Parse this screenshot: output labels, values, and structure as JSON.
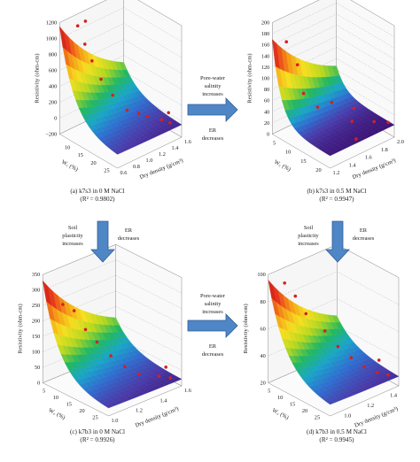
{
  "colors": {
    "arrow_fill": "#4f86c6",
    "arrow_stroke": "#2f5f96",
    "points": "#d42020",
    "grid": "#9a9a9a",
    "colormap": [
      "#3b0f70",
      "#4a3aa8",
      "#2f6fd0",
      "#1aa6c8",
      "#22b860",
      "#b8d820",
      "#f6e020",
      "#f59a16",
      "#e6321c",
      "#b81414"
    ]
  },
  "arrows": {
    "h_top": {
      "lines": [
        "Pore-water",
        "salinity",
        "increases"
      ],
      "below": [
        "ER",
        "decreases"
      ]
    },
    "h_bottom": {
      "lines": [
        "Pore-water",
        "salinity",
        "increases"
      ],
      "below": [
        "ER",
        "decreases"
      ]
    },
    "v_left": {
      "left": [
        "Soil",
        "plasticity",
        "increases"
      ],
      "right": [
        "ER",
        "decreases"
      ]
    },
    "v_right": {
      "left": [
        "Soil",
        "plasticity",
        "increases"
      ],
      "right": [
        "ER",
        "decreases"
      ]
    }
  },
  "chart_data": [
    {
      "type": "surface3d",
      "caption": "(a) k7s3 in 0 M NaCl",
      "r2": "(R² = 0.9802)",
      "zlabel": "Resistivity (ohm-cm)",
      "wlabel": "W꜀ (%)",
      "dlabel": "Dry density (g/cm³)",
      "z_ticks": [
        "1200",
        "1000",
        "800",
        "600",
        "400",
        "200",
        "0",
        "−200"
      ],
      "zlim": [
        -200,
        1200
      ],
      "w_ticks": [
        "10",
        "15",
        "20",
        "25"
      ],
      "wlim": [
        5,
        27
      ],
      "d_ticks": [
        "0.6",
        "0.8",
        "1.0",
        "1.2",
        "1.4",
        "1.6"
      ],
      "dlim": [
        0.6,
        1.6
      ],
      "surface": {
        "z_max": 1150,
        "z_floor": -50,
        "w_decay": 0.18,
        "d_decay": 1.2
      },
      "points": [
        {
          "w": 7,
          "d": 0.8,
          "z": 1120
        },
        {
          "w": 7.5,
          "d": 0.9,
          "z": 1150
        },
        {
          "w": 8.5,
          "d": 0.85,
          "z": 900
        },
        {
          "w": 10,
          "d": 0.9,
          "z": 700
        },
        {
          "w": 11,
          "d": 1.0,
          "z": 450
        },
        {
          "w": 13,
          "d": 1.1,
          "z": 250
        },
        {
          "w": 16,
          "d": 1.2,
          "z": 80
        },
        {
          "w": 18,
          "d": 1.3,
          "z": 40
        },
        {
          "w": 20,
          "d": 1.35,
          "z": 20
        },
        {
          "w": 23,
          "d": 1.45,
          "z": 0
        },
        {
          "w": 25,
          "d": 1.5,
          "z": -20
        },
        {
          "w": 22,
          "d": 1.6,
          "z": 10
        }
      ]
    },
    {
      "type": "surface3d",
      "caption": "(b) k7s3 in 0.5 M NaCl",
      "r2": "(R² = 0.9947)",
      "zlabel": "Resistivity (ohm-cm)",
      "wlabel": "W꜀ (%)",
      "dlabel": "Dry density (g/cm³)",
      "z_ticks": [
        "200",
        "180",
        "160",
        "140",
        "120",
        "100",
        "80",
        "60",
        "40",
        "20",
        "0"
      ],
      "zlim": [
        0,
        200
      ],
      "w_ticks": [
        "5",
        "10",
        "15",
        "20"
      ],
      "wlim": [
        3,
        22
      ],
      "d_ticks": [
        "1.2",
        "1.4",
        "1.6",
        "1.8",
        "2.0"
      ],
      "dlim": [
        1.2,
        2.0
      ],
      "surface": {
        "z_max": 170,
        "z_floor": 22,
        "w_decay": 0.35,
        "d_decay": 1.5
      },
      "points": [
        {
          "w": 5,
          "d": 1.3,
          "z": 165
        },
        {
          "w": 6,
          "d": 1.4,
          "z": 120
        },
        {
          "w": 8,
          "d": 1.4,
          "z": 75
        },
        {
          "w": 10,
          "d": 1.5,
          "z": 50
        },
        {
          "w": 12,
          "d": 1.6,
          "z": 58
        },
        {
          "w": 14,
          "d": 1.8,
          "z": 40
        },
        {
          "w": 16,
          "d": 1.7,
          "z": 30
        },
        {
          "w": 18,
          "d": 1.9,
          "z": 22
        },
        {
          "w": 20,
          "d": 1.6,
          "z": 18
        },
        {
          "w": 20,
          "d": 2.0,
          "z": 20
        }
      ]
    },
    {
      "type": "surface3d",
      "caption": "(c) k7b3 in 0 M NaCl",
      "r2": "(R² = 0.9926)",
      "zlabel": "Resistivity (ohm-cm)",
      "wlabel": "W꜀ (%)",
      "dlabel": "Dry density (g/cm³)",
      "z_ticks": [
        "350",
        "300",
        "250",
        "200",
        "150",
        "100",
        "50",
        "0"
      ],
      "zlim": [
        0,
        350
      ],
      "w_ticks": [
        "5",
        "10",
        "15",
        "20",
        "25"
      ],
      "wlim": [
        3,
        28
      ],
      "d_ticks": [
        "1.0",
        "1.2",
        "1.4",
        "1.6"
      ],
      "dlim": [
        1.0,
        1.6
      ],
      "surface": {
        "z_max": 330,
        "z_floor": 20,
        "w_decay": 0.16,
        "d_decay": 2.0
      },
      "points": [
        {
          "w": 6,
          "d": 1.1,
          "z": 250
        },
        {
          "w": 8,
          "d": 1.15,
          "z": 230
        },
        {
          "w": 10,
          "d": 1.2,
          "z": 170
        },
        {
          "w": 12,
          "d": 1.25,
          "z": 130
        },
        {
          "w": 15,
          "d": 1.3,
          "z": 90
        },
        {
          "w": 18,
          "d": 1.35,
          "z": 60
        },
        {
          "w": 21,
          "d": 1.4,
          "z": 40
        },
        {
          "w": 24,
          "d": 1.5,
          "z": 30
        },
        {
          "w": 26,
          "d": 1.55,
          "z": 25
        },
        {
          "w": 22,
          "d": 1.6,
          "z": 35
        }
      ]
    },
    {
      "type": "surface3d",
      "caption": "(d) k7b3 in 0.5 M NaCl",
      "r2": "(R² = 0.9945)",
      "zlabel": "Resistivity (ohm-cm)",
      "wlabel": "W꜀ (%)",
      "dlabel": "Dry density (g/cm³)",
      "z_ticks": [
        "100",
        "80",
        "60",
        "40",
        "20"
      ],
      "zlim": [
        10,
        110
      ],
      "w_ticks": [
        "5",
        "10",
        "15",
        "20",
        "25"
      ],
      "wlim": [
        3,
        28
      ],
      "d_ticks": [
        "1.0",
        "1.2",
        "1.4"
      ],
      "dlim": [
        0.9,
        1.5
      ],
      "surface": {
        "z_max": 105,
        "z_floor": 18,
        "w_decay": 0.14,
        "d_decay": 2.0
      },
      "points": [
        {
          "w": 5,
          "d": 1.0,
          "z": 100
        },
        {
          "w": 7,
          "d": 1.05,
          "z": 88
        },
        {
          "w": 9,
          "d": 1.1,
          "z": 72
        },
        {
          "w": 12,
          "d": 1.2,
          "z": 55
        },
        {
          "w": 15,
          "d": 1.25,
          "z": 42
        },
        {
          "w": 18,
          "d": 1.3,
          "z": 33
        },
        {
          "w": 21,
          "d": 1.35,
          "z": 26
        },
        {
          "w": 24,
          "d": 1.4,
          "z": 22
        },
        {
          "w": 26,
          "d": 1.45,
          "z": 20
        },
        {
          "w": 20,
          "d": 1.5,
          "z": 24
        }
      ]
    }
  ]
}
